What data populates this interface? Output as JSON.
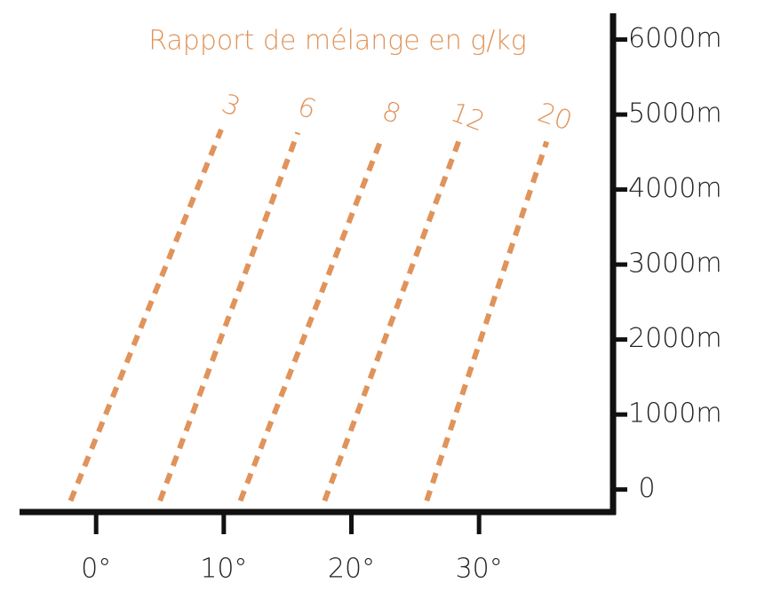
{
  "chart_data": {
    "type": "line",
    "title": "Rapport de mélange en g/kg",
    "xlim": [
      -6,
      40.5
    ],
    "ylim": [
      -300,
      6350
    ],
    "xticks": [
      {
        "value": 0,
        "label": "0°"
      },
      {
        "value": 10,
        "label": "10°"
      },
      {
        "value": 20,
        "label": "20°"
      },
      {
        "value": 30,
        "label": "30°"
      }
    ],
    "yticks": [
      0,
      {
        "value": 1000,
        "label": "1000m"
      },
      {
        "value": 2000,
        "label": "2000m"
      },
      {
        "value": 3000,
        "label": "3000m"
      },
      {
        "value": 4000,
        "label": "4000m"
      },
      {
        "value": 5000,
        "label": "5000m"
      },
      {
        "value": 6000,
        "label": "6000m"
      }
    ],
    "grid": false,
    "series": [
      {
        "name": "3",
        "color": "#e0935a",
        "x": [
          -2,
          9.8
        ],
        "values": [
          -150,
          4800
        ]
      },
      {
        "name": "6",
        "color": "#e0935a",
        "x": [
          5,
          15.8
        ],
        "values": [
          -150,
          4760
        ]
      },
      {
        "name": "8",
        "color": "#e0935a",
        "x": [
          11.3,
          22.4
        ],
        "values": [
          -150,
          4700
        ]
      },
      {
        "name": "12",
        "color": "#e0935a",
        "x": [
          17.9,
          28.4
        ],
        "values": [
          -150,
          4640
        ]
      },
      {
        "name": "20",
        "color": "#e0935a",
        "x": [
          25.9,
          35.3
        ],
        "values": [
          -150,
          4640
        ]
      }
    ]
  }
}
